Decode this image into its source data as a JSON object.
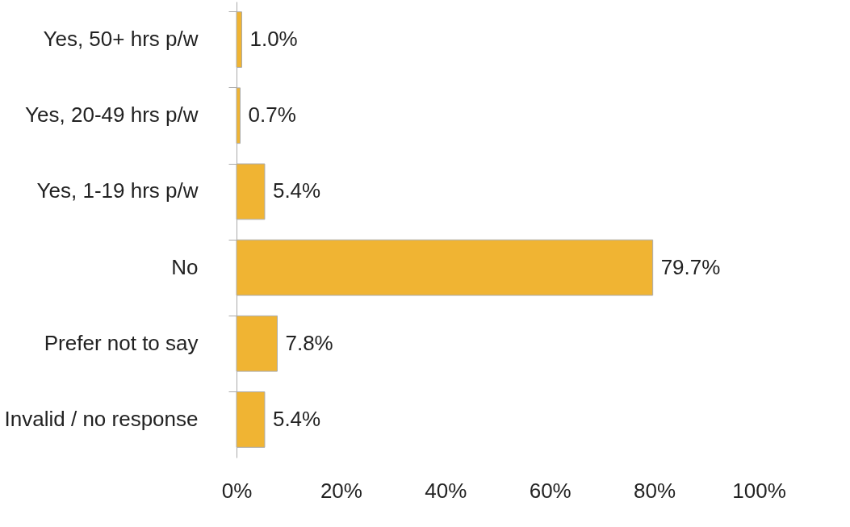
{
  "chart_data": {
    "type": "bar",
    "orientation": "horizontal",
    "categories": [
      "Yes, 50+ hrs p/w",
      "Yes, 20-49 hrs p/w",
      "Yes, 1-19 hrs p/w",
      "No",
      "Prefer not to say",
      "Invalid / no response"
    ],
    "values": [
      1.0,
      0.7,
      5.4,
      79.7,
      7.8,
      5.4
    ],
    "value_labels": [
      "1.0%",
      "0.7%",
      "5.4%",
      "79.7%",
      "7.8%",
      "5.4%"
    ],
    "color": "#f0b433",
    "xlim": [
      0,
      100
    ],
    "xticks": [
      {
        "value": 0,
        "label": "0%"
      },
      {
        "value": 20,
        "label": "20%"
      },
      {
        "value": 40,
        "label": "40%"
      },
      {
        "value": 60,
        "label": "60%"
      },
      {
        "value": 80,
        "label": "80%"
      },
      {
        "value": 100,
        "label": "100%"
      }
    ]
  }
}
